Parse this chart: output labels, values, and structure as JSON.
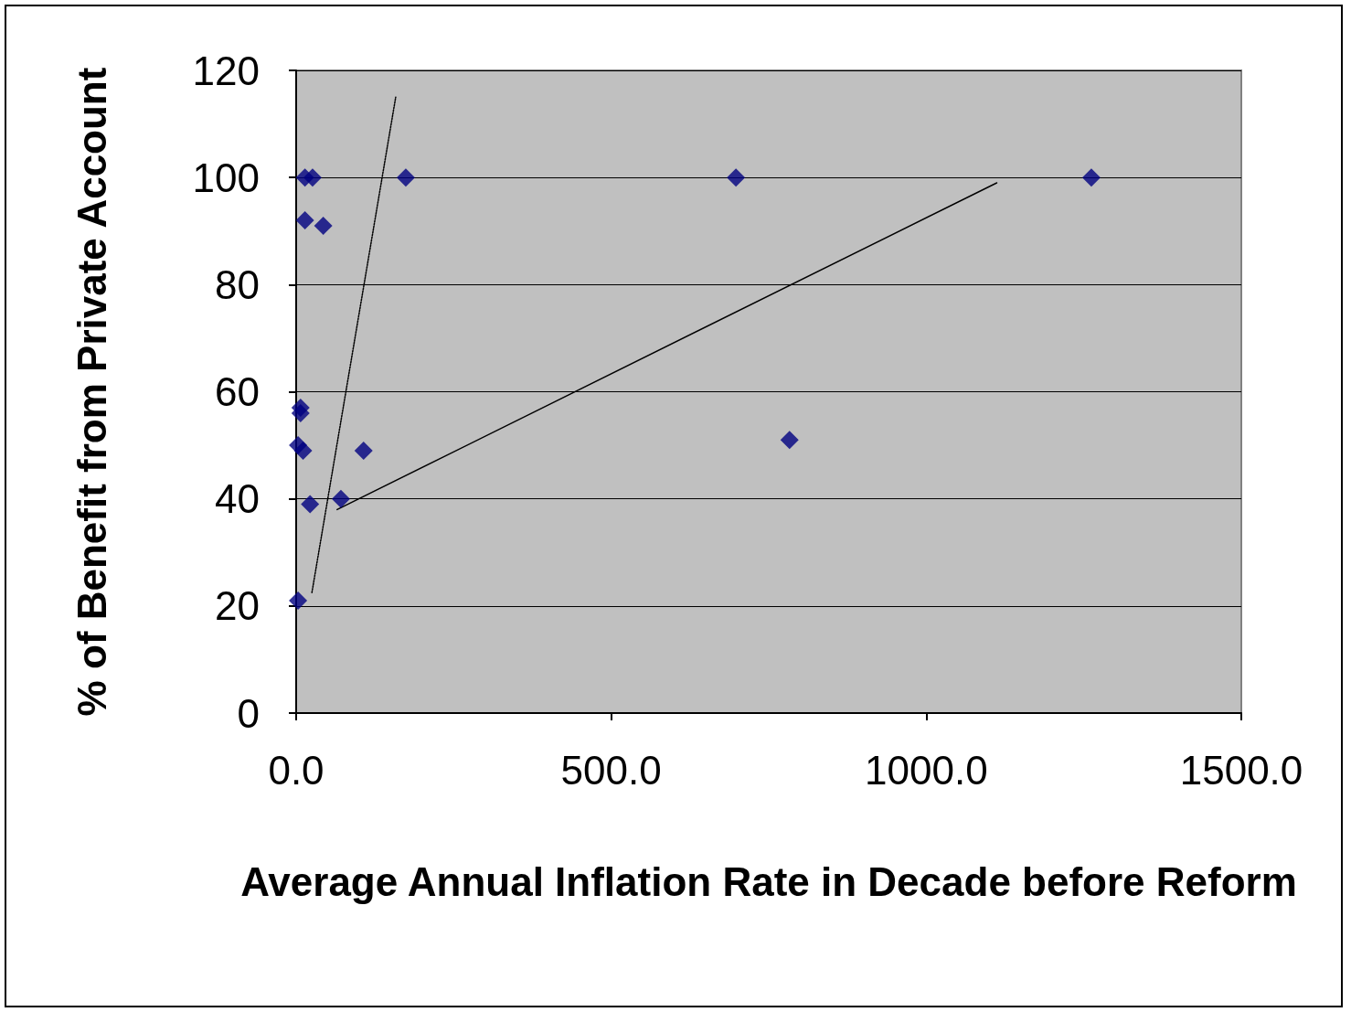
{
  "chart_data": {
    "type": "scatter",
    "xlabel": "Average Annual Inflation Rate in Decade before Reform",
    "ylabel": "% of Benefit from Private Account",
    "xlim": [
      0,
      1500
    ],
    "xticks": [
      {
        "value": 0,
        "label": "0.0"
      },
      {
        "value": 500,
        "label": "500.0"
      },
      {
        "value": 1000,
        "label": "1000.0"
      },
      {
        "value": 1500,
        "label": "1500.0"
      }
    ],
    "ylim": [
      0,
      120
    ],
    "yticks": [
      0,
      20,
      40,
      60,
      80,
      100,
      120
    ],
    "grid": "y",
    "marker": "diamond",
    "series": [
      {
        "color": "#000080",
        "x": [
          14,
          26,
          174,
          698,
          1262,
          14,
          43,
          7,
          7,
          3,
          11,
          107,
          71,
          22,
          3,
          783
        ],
        "values": [
          100,
          100,
          100,
          100,
          100,
          92,
          91,
          57,
          56,
          50,
          49,
          49,
          40,
          39,
          21,
          51
        ]
      },
      {
        "type": "line",
        "color": "#000000",
        "marker": "none",
        "line_style": "solid",
        "x": [
          65,
          1112
        ],
        "values": [
          38,
          99
        ]
      },
      {
        "type": "line",
        "color": "#000000",
        "marker": "none",
        "line_style": "dotted",
        "x": [
          25,
          158
        ],
        "values": [
          22.5,
          115
        ]
      }
    ]
  }
}
